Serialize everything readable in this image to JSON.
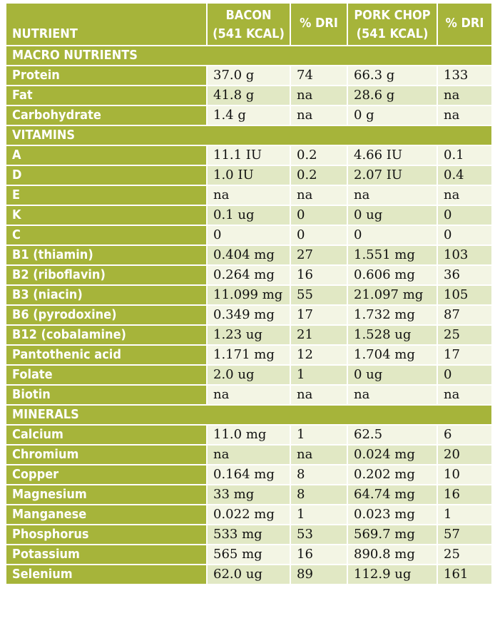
{
  "header": {
    "nutrient": "NUTRIENT",
    "bacon_line1": "BACON",
    "bacon_line2": "(541 KCAL)",
    "dri1": "% DRI",
    "pork_line1": "PORK CHOP",
    "pork_line2": "(541 KCAL)",
    "dri2": "% DRI"
  },
  "sections": [
    {
      "title": "MACRO NUTRIENTS",
      "rows": [
        [
          "Protein",
          "37.0 g",
          "74",
          "66.3 g",
          "133"
        ],
        [
          "Fat",
          "41.8 g",
          "na",
          "28.6 g",
          "na"
        ],
        [
          "Carbohydrate",
          "1.4 g",
          "na",
          "0 g",
          "na"
        ]
      ]
    },
    {
      "title": "VITAMINS",
      "rows": [
        [
          "A",
          "11.1 IU",
          "0.2",
          "4.66 IU",
          "0.1"
        ],
        [
          "D",
          "1.0  IU",
          "0.2",
          "2.07 IU",
          "0.4"
        ],
        [
          "E",
          "na",
          "na",
          "na",
          "na"
        ],
        [
          "K",
          "0.1 ug",
          "0",
          "0 ug",
          "0"
        ],
        [
          "C",
          "0",
          "0",
          "0",
          "0"
        ],
        [
          "B1 (thiamin)",
          "0.404 mg",
          "27",
          "1.551 mg",
          "103"
        ],
        [
          "B2 (riboflavin)",
          "0.264 mg",
          "16",
          "0.606 mg",
          "36"
        ],
        [
          "B3 (niacin)",
          "11.099 mg",
          "55",
          "21.097 mg",
          "105"
        ],
        [
          "B6 (pyrodoxine)",
          "0.349 mg",
          "17",
          "1.732 mg",
          "87"
        ],
        [
          "B12 (cobalamine)",
          "1.23 ug",
          "21",
          "1.528 ug",
          "25"
        ],
        [
          "Pantothenic acid",
          "1.171 mg",
          "12",
          "1.704 mg",
          "17"
        ],
        [
          "Folate",
          "2.0 ug",
          "1",
          "0 ug",
          "0"
        ],
        [
          "Biotin",
          "na",
          "na",
          "na",
          "na"
        ]
      ]
    },
    {
      "title": "MINERALS",
      "rows": [
        [
          "Calcium",
          "11.0 mg",
          "1",
          "62.5",
          "6"
        ],
        [
          "Chromium",
          "na",
          "na",
          "0.024 mg",
          "20"
        ],
        [
          "Copper",
          "0.164 mg",
          "8",
          "0.202 mg",
          "10"
        ],
        [
          "Magnesium",
          "33 mg",
          "8",
          "64.74 mg",
          "16"
        ],
        [
          "Manganese",
          "0.022 mg",
          "1",
          "0.023 mg",
          "1"
        ],
        [
          "Phosphorus",
          "533 mg",
          "53",
          "569.7 mg",
          "57"
        ],
        [
          "Potassium",
          "565 mg",
          "16",
          "890.8 mg",
          "25"
        ],
        [
          "Selenium",
          "62.0 ug",
          "89",
          "112.9 ug",
          "161"
        ]
      ]
    }
  ]
}
